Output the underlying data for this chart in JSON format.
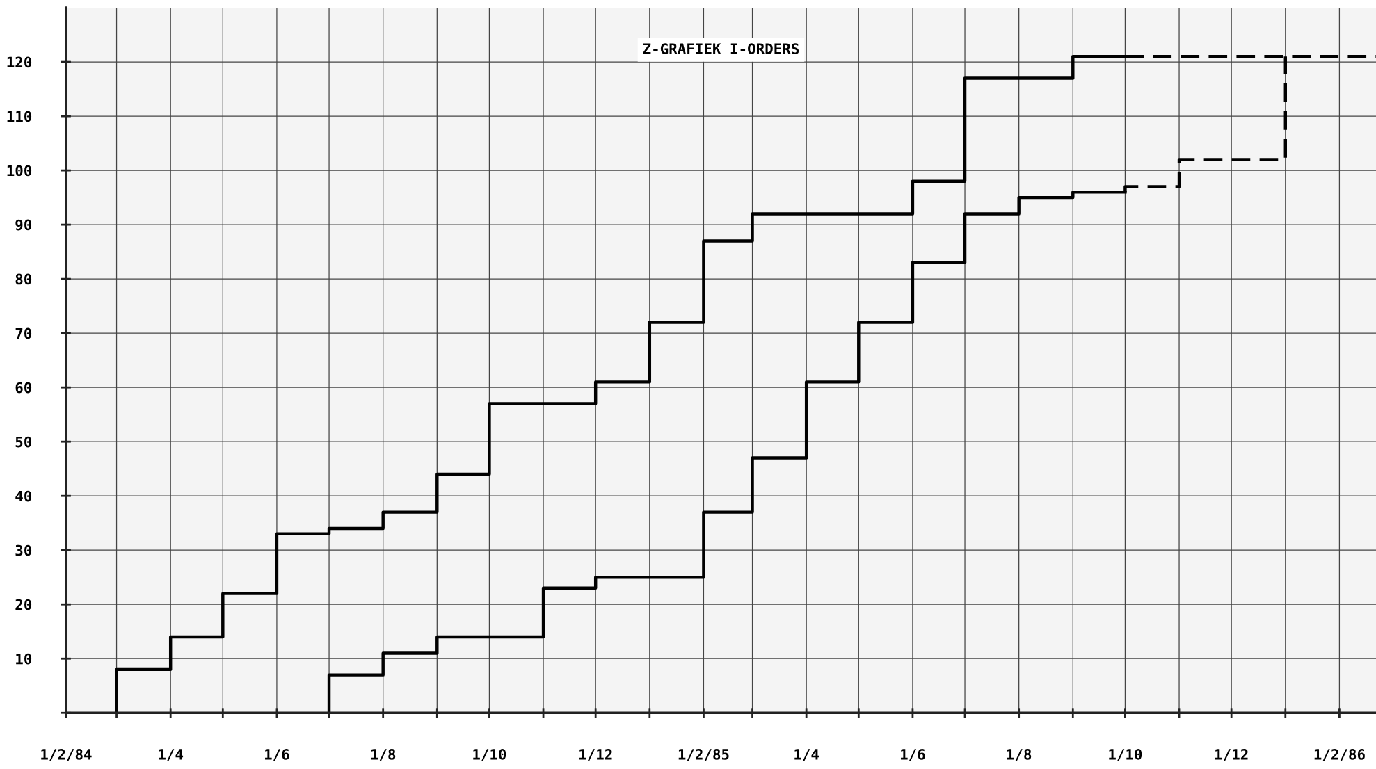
{
  "chart_data": {
    "type": "step",
    "title": "Z-GRAFIEK I-ORDERS",
    "xlim": [
      "1984-02",
      "1986-02-22"
    ],
    "ylim": [
      0,
      130
    ],
    "xticks": [
      {
        "value": "1984-02",
        "label": "1/2/84"
      },
      {
        "value": "1984-03",
        "label": null
      },
      {
        "value": "1984-04",
        "label": "1/4"
      },
      {
        "value": "1984-05",
        "label": null
      },
      {
        "value": "1984-06",
        "label": "1/6"
      },
      {
        "value": "1984-07",
        "label": null
      },
      {
        "value": "1984-08",
        "label": "1/8"
      },
      {
        "value": "1984-09",
        "label": null
      },
      {
        "value": "1984-10",
        "label": "1/10"
      },
      {
        "value": "1984-11",
        "label": null
      },
      {
        "value": "1984-12",
        "label": "1/12"
      },
      {
        "value": "1985-01",
        "label": null
      },
      {
        "value": "1985-02",
        "label": "1/2/85"
      },
      {
        "value": "1985-03",
        "label": null
      },
      {
        "value": "1985-04",
        "label": "1/4"
      },
      {
        "value": "1985-05",
        "label": null
      },
      {
        "value": "1985-06",
        "label": "1/6"
      },
      {
        "value": "1985-07",
        "label": null
      },
      {
        "value": "1985-08",
        "label": "1/8"
      },
      {
        "value": "1985-09",
        "label": null
      },
      {
        "value": "1985-10",
        "label": "1/10"
      },
      {
        "value": "1985-11",
        "label": null
      },
      {
        "value": "1985-12",
        "label": "1/12"
      },
      {
        "value": "1986-01",
        "label": null
      },
      {
        "value": "1986-02",
        "label": "1/2/86"
      }
    ],
    "yticks": [
      {
        "value": 0,
        "label": null
      },
      10,
      20,
      30,
      40,
      50,
      60,
      70,
      80,
      90,
      100,
      110,
      120
    ],
    "grid": true,
    "marker": "none",
    "series": [
      {
        "color": "#000000",
        "line_style": "solid",
        "x": [
          "1984-03",
          "1984-04",
          "1984-05",
          "1984-06",
          "1984-07",
          "1984-08",
          "1984-09",
          "1984-10",
          "1984-12",
          "1985-01",
          "1985-02",
          "1985-03",
          "1985-06",
          "1985-07",
          "1985-09",
          "1985-10"
        ],
        "values": [
          0,
          8,
          14,
          22,
          33,
          34,
          37,
          44,
          57,
          61,
          72,
          87,
          92,
          98,
          117,
          121
        ]
      },
      {
        "color": "#000000",
        "line_style": "dashed",
        "x": [
          "1985-10",
          "1986-02-22"
        ],
        "values": [
          121,
          121
        ]
      },
      {
        "color": "#000000",
        "line_style": "solid",
        "x": [
          "1984-07",
          "1984-08",
          "1984-09",
          "1984-11",
          "1984-12",
          "1985-02",
          "1985-03",
          "1985-04",
          "1985-05",
          "1985-06",
          "1985-07",
          "1985-08",
          "1985-09",
          "1985-10"
        ],
        "values": [
          0,
          7,
          11,
          14,
          23,
          25,
          37,
          47,
          61,
          72,
          83,
          92,
          95,
          96
        ]
      },
      {
        "color": "#000000",
        "line_style": "dashed",
        "x": [
          "1985-10",
          "1985-11",
          "1986-01",
          "1986-01"
        ],
        "values": [
          96,
          97,
          102,
          121
        ]
      }
    ]
  }
}
